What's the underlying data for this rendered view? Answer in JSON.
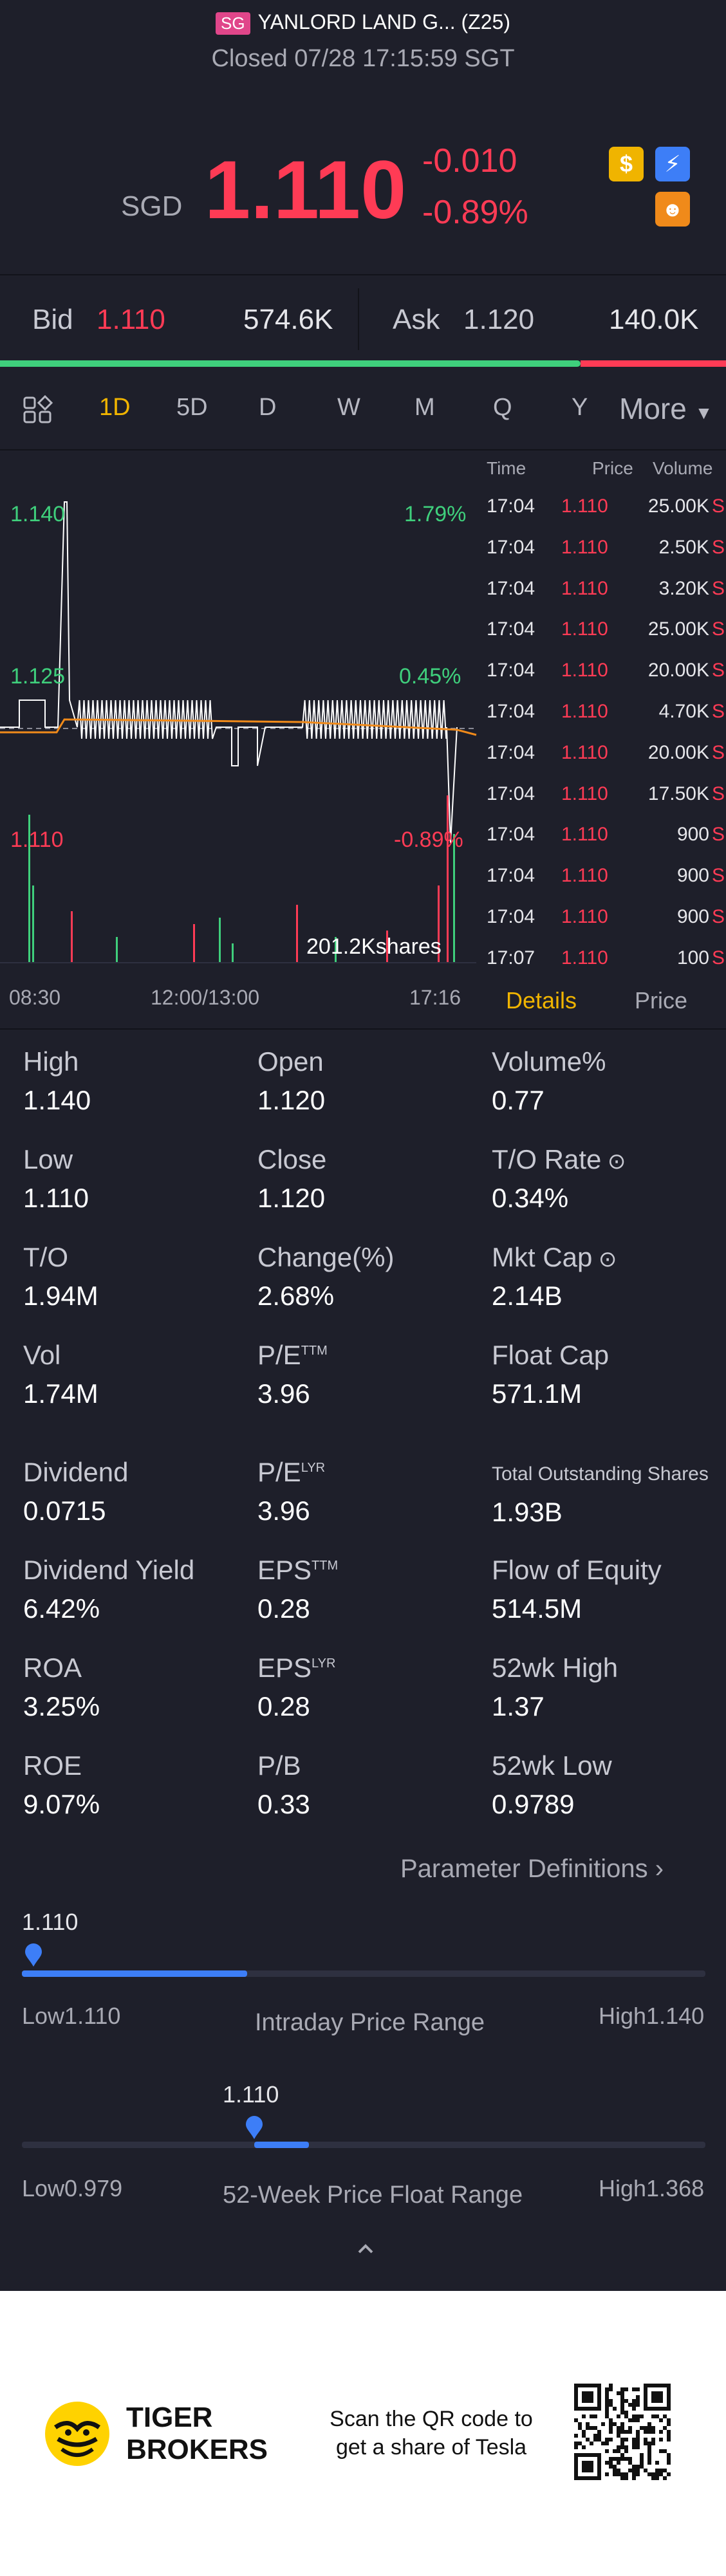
{
  "header": {
    "market_badge": "SG",
    "name": "YANLORD LAND G... (Z25)",
    "status": "Closed 07/28 17:15:59 SGT",
    "currency": "SGD",
    "price": "1.110",
    "change": "-0.010",
    "change_pct": "-0.89%"
  },
  "quote_bar": {
    "bid_label": "Bid",
    "bid_price": "1.110",
    "bid_size": "574.6K",
    "ask_label": "Ask",
    "ask_price": "1.120",
    "ask_size": "140.0K",
    "bid_fraction": 0.8
  },
  "tabs": [
    "1D",
    "5D",
    "D",
    "W",
    "M",
    "Q",
    "Y"
  ],
  "tabs_more": "More",
  "active_tab": "1D",
  "chart": {
    "price_high": "1.140",
    "price_mid": "1.125",
    "price_low": "1.110",
    "pct_high": "1.79%",
    "pct_mid": "0.45%",
    "pct_low": "-0.89%",
    "volume_label": "201.2Kshares",
    "time_start": "08:30",
    "time_mid": "12:00/13:00",
    "time_end": "17:16"
  },
  "trades_header": {
    "time": "Time",
    "price": "Price",
    "volume": "Volume"
  },
  "trades": [
    {
      "time": "17:04",
      "price": "1.110",
      "vol": "25.00K",
      "side": "S"
    },
    {
      "time": "17:04",
      "price": "1.110",
      "vol": "2.50K",
      "side": "S"
    },
    {
      "time": "17:04",
      "price": "1.110",
      "vol": "3.20K",
      "side": "S"
    },
    {
      "time": "17:04",
      "price": "1.110",
      "vol": "25.00K",
      "side": "S"
    },
    {
      "time": "17:04",
      "price": "1.110",
      "vol": "20.00K",
      "side": "S"
    },
    {
      "time": "17:04",
      "price": "1.110",
      "vol": "4.70K",
      "side": "S"
    },
    {
      "time": "17:04",
      "price": "1.110",
      "vol": "20.00K",
      "side": "S"
    },
    {
      "time": "17:04",
      "price": "1.110",
      "vol": "17.50K",
      "side": "S"
    },
    {
      "time": "17:04",
      "price": "1.110",
      "vol": "900",
      "side": "S"
    },
    {
      "time": "17:04",
      "price": "1.110",
      "vol": "900",
      "side": "S"
    },
    {
      "time": "17:04",
      "price": "1.110",
      "vol": "900",
      "side": "S"
    },
    {
      "time": "17:07",
      "price": "1.110",
      "vol": "100",
      "side": "S"
    }
  ],
  "sub_tabs": {
    "details": "Details",
    "price": "Price"
  },
  "stats": [
    {
      "label": "High",
      "value": "1.140"
    },
    {
      "label": "Open",
      "value": "1.120"
    },
    {
      "label": "Volume%",
      "value": "0.77"
    },
    {
      "label": "Low",
      "value": "1.110"
    },
    {
      "label": "Close",
      "value": "1.120"
    },
    {
      "label": "T/O Rate",
      "value": "0.34%"
    },
    {
      "label": "T/O",
      "value": "1.94M"
    },
    {
      "label": "Change(%)",
      "value": "2.68%"
    },
    {
      "label": "Mkt Cap",
      "value": "2.14B"
    },
    {
      "label": "Vol",
      "value": "1.74M"
    },
    {
      "label": "P/E",
      "sup": "TTM",
      "value": "3.96"
    },
    {
      "label": "Float Cap",
      "value": "571.1M"
    },
    {
      "label": "Dividend",
      "value": "0.0715"
    },
    {
      "label": "P/E",
      "sup": "LYR",
      "value": "3.96"
    },
    {
      "label": "Total Outstanding Shares",
      "value": "1.93B"
    },
    {
      "label": "Dividend Yield",
      "value": "6.42%"
    },
    {
      "label": "EPS",
      "sup": "TTM",
      "value": "0.28"
    },
    {
      "label": "Flow of Equity",
      "value": "514.5M"
    },
    {
      "label": "ROA",
      "value": "3.25%"
    },
    {
      "label": "EPS",
      "sup": "LYR",
      "value": "0.28"
    },
    {
      "label": "52wk High",
      "value": "1.37"
    },
    {
      "label": "ROE",
      "value": "9.07%"
    },
    {
      "label": "P/B",
      "value": "0.33"
    },
    {
      "label": "52wk Low",
      "value": "0.9789"
    }
  ],
  "param_link": "Parameter Definitions",
  "intraday_range": {
    "current": "1.110",
    "low": "Low1.110",
    "title": "Intraday Price Range",
    "high": "High1.140",
    "marker_fraction": 0.0,
    "fill_fraction": 0.33
  },
  "week52_range": {
    "current": "1.110",
    "low": "Low0.979",
    "title": "52-Week Price Float Range",
    "high": "High1.368",
    "marker_fraction": 0.34,
    "fill_fraction": 0.08
  },
  "footer": {
    "brand_line1": "TIGER",
    "brand_line2": "BROKERS",
    "promo_line1": "Scan the QR code to",
    "promo_line2": "get a share of Tesla"
  },
  "colors": {
    "red": "#ff3b55",
    "green": "#3fcf7c",
    "blue": "#3d7ef7",
    "orange": "#f08a1a",
    "gold": "#f0b400"
  }
}
